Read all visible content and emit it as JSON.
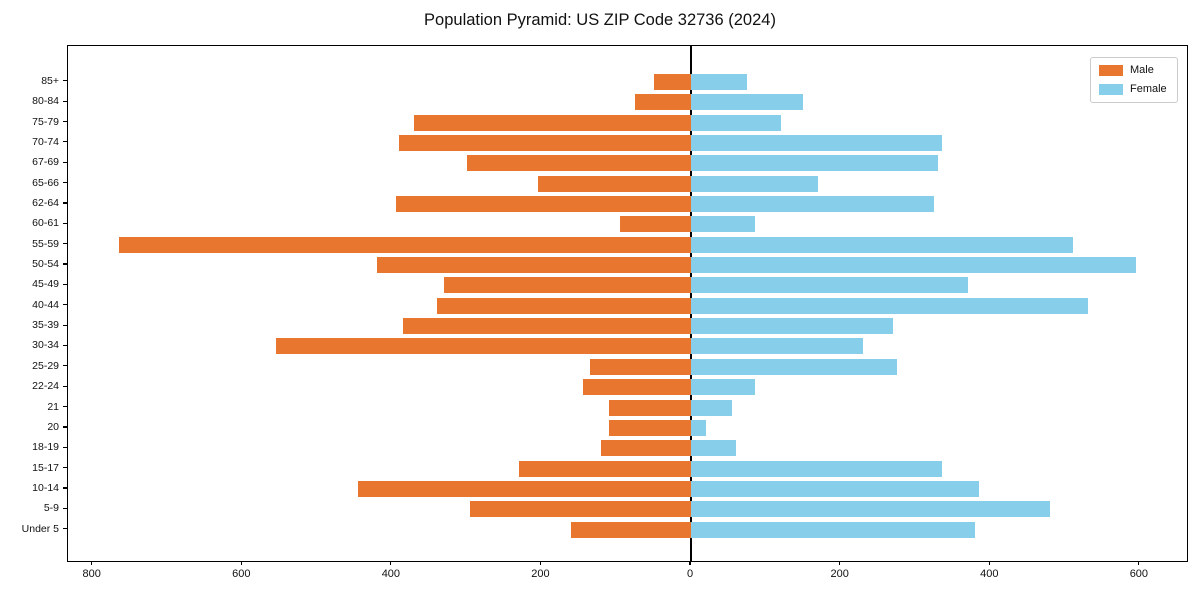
{
  "title": "Population Pyramid: US ZIP Code 32736 (2024)",
  "legend": {
    "male_label": "Male",
    "female_label": "Female"
  },
  "colors": {
    "male": "#E8762F",
    "female": "#87CEEB",
    "axis": "#000000",
    "legend_border": "#cccccc",
    "background": "#ffffff"
  },
  "chart_data": {
    "type": "bar",
    "variant": "population-pyramid",
    "title": "Population Pyramid: US ZIP Code 32736 (2024)",
    "categories": [
      "85+",
      "80-84",
      "75-79",
      "70-74",
      "67-69",
      "65-66",
      "62-64",
      "60-61",
      "55-59",
      "50-54",
      "45-49",
      "40-44",
      "35-39",
      "30-34",
      "25-29",
      "22-24",
      "21",
      "20",
      "18-19",
      "15-17",
      "10-14",
      "5-9",
      "Under 5"
    ],
    "series": [
      {
        "name": "Male",
        "side": "left",
        "color": "#E8762F",
        "values": [
          50,
          75,
          370,
          390,
          300,
          205,
          395,
          95,
          765,
          420,
          330,
          340,
          385,
          555,
          135,
          145,
          110,
          110,
          120,
          230,
          445,
          295,
          160
        ]
      },
      {
        "name": "Female",
        "side": "right",
        "color": "#87CEEB",
        "values": [
          75,
          150,
          120,
          335,
          330,
          170,
          325,
          85,
          510,
          595,
          370,
          530,
          270,
          230,
          275,
          85,
          55,
          20,
          60,
          335,
          385,
          480,
          380
        ]
      }
    ],
    "xlim": [
      -833,
      663
    ],
    "x_ticks": [
      {
        "value": -800,
        "label": "800"
      },
      {
        "value": -600,
        "label": "600"
      },
      {
        "value": -400,
        "label": "400"
      },
      {
        "value": -200,
        "label": "200"
      },
      {
        "value": 0,
        "label": "0"
      },
      {
        "value": 200,
        "label": "200"
      },
      {
        "value": 400,
        "label": "400"
      },
      {
        "value": 600,
        "label": "600"
      }
    ],
    "grid": false,
    "legend_position": "upper right"
  }
}
